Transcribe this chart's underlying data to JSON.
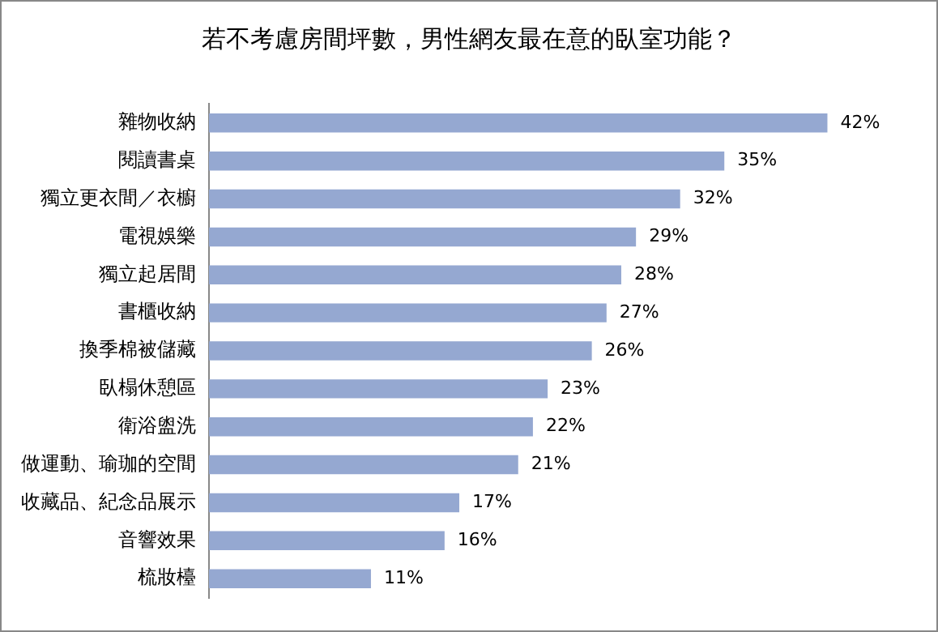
{
  "chart_data": {
    "type": "bar",
    "orientation": "horizontal",
    "title": "若不考慮房間坪數，男性網友最在意的臥室功能？",
    "categories": [
      "雜物收納",
      "閱讀書桌",
      "獨立更衣間／衣櫥",
      "電視娛樂",
      "獨立起居間",
      "書櫃收納",
      "換季棉被儲藏",
      "臥榻休憩區",
      "衛浴盥洗",
      "做運動、瑜珈的空間",
      "收藏品、紀念品展示",
      "音響效果",
      "梳妝檯"
    ],
    "values": [
      42,
      35,
      32,
      29,
      28,
      27,
      26,
      23,
      22,
      21,
      17,
      16,
      11
    ],
    "value_labels": [
      "42%",
      "35%",
      "32%",
      "29%",
      "28%",
      "27%",
      "26%",
      "23%",
      "22%",
      "21%",
      "17%",
      "16%",
      "11%"
    ],
    "color": "#95a8d1",
    "grid": false,
    "legend": false,
    "tick_labels": "y"
  }
}
